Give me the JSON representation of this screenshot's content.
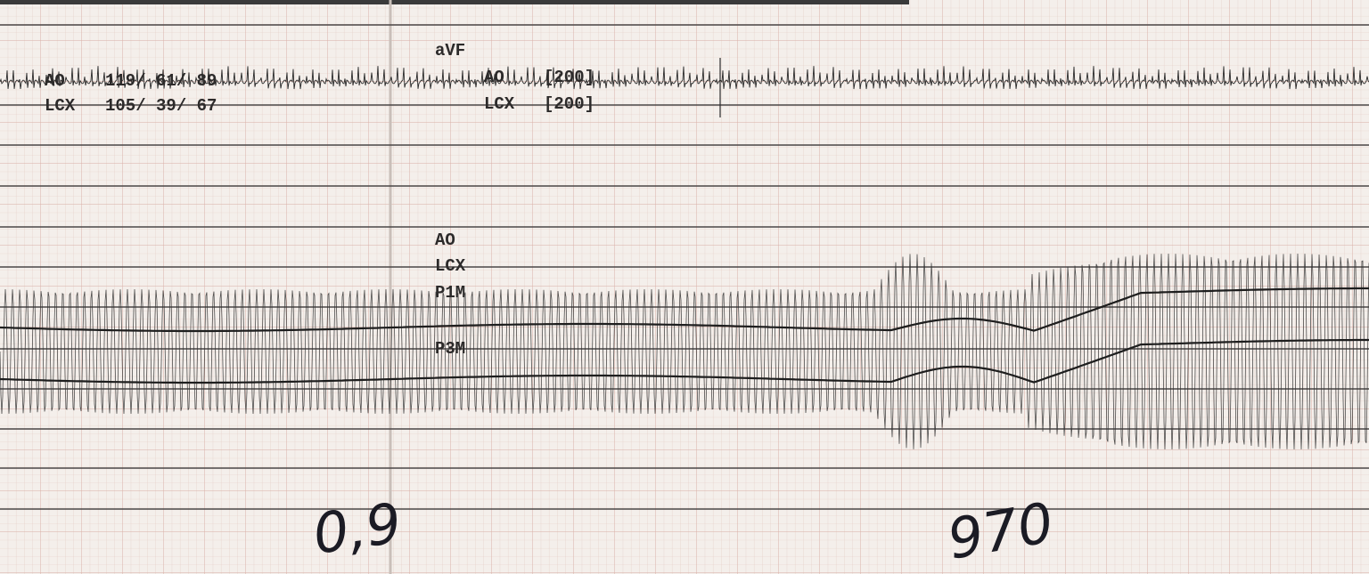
{
  "strip": {
    "left_labels": [
      {
        "lead": "AO",
        "values": "119/ 61/ 89"
      },
      {
        "lead": "LCX",
        "values": "105/ 39/ 67"
      }
    ],
    "lead_label": "aVF",
    "scale_labels": [
      {
        "lead": "AO",
        "scale": "[200]"
      },
      {
        "lead": "LCX",
        "scale": "[200]"
      }
    ],
    "channel_labels": [
      "AO",
      "LCX",
      "P1M",
      "P3M"
    ],
    "handwritten": [
      "0,9",
      "970"
    ]
  }
}
